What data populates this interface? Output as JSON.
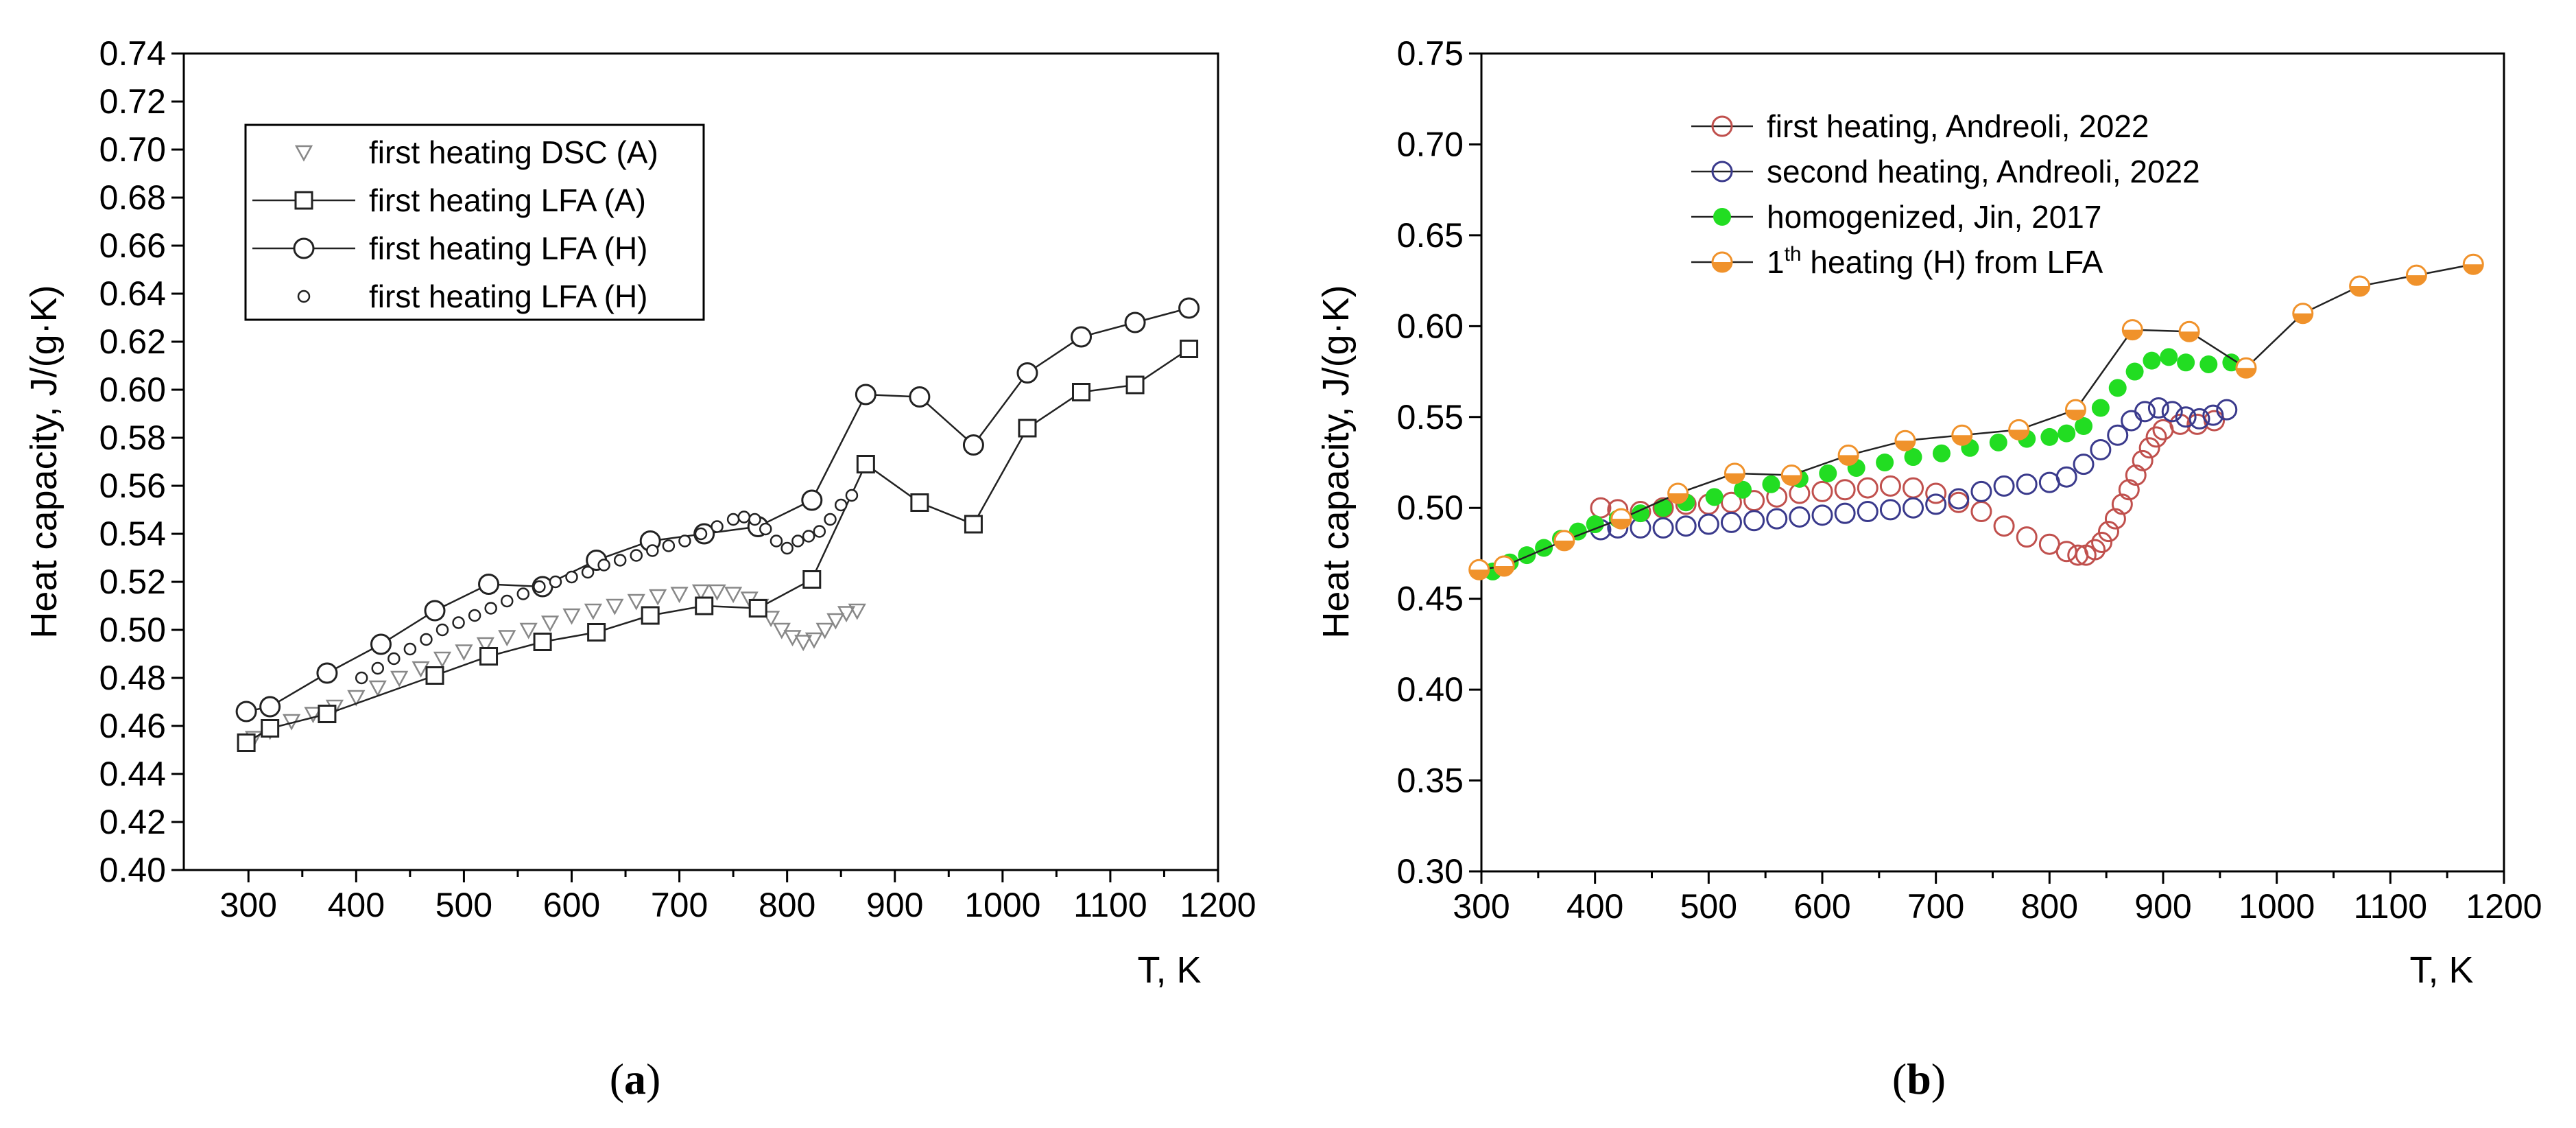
{
  "chart_data": [
    {
      "id": "a",
      "type": "line",
      "caption_open": "(",
      "caption_letter": "a",
      "caption_close": ")",
      "xlabel": "T, K",
      "ylabel": "Heat capacity, J/(g·K)",
      "xlim": [
        240,
        1200
      ],
      "ylim": [
        0.4,
        0.74
      ],
      "xticks": [
        300,
        400,
        500,
        600,
        700,
        800,
        900,
        1000,
        1100,
        1200
      ],
      "xtick_labels": [
        "300",
        "400",
        "500",
        "600",
        "700",
        "800",
        "900",
        "1000",
        "1100",
        "1200"
      ],
      "yticks": [
        0.4,
        0.42,
        0.44,
        0.46,
        0.48,
        0.5,
        0.52,
        0.54,
        0.56,
        0.58,
        0.6,
        0.62,
        0.64,
        0.66,
        0.68,
        0.7,
        0.72,
        0.74
      ],
      "ytick_labels": [
        "0.40",
        "0.42",
        "0.44",
        "0.46",
        "0.48",
        "0.50",
        "0.52",
        "0.54",
        "0.56",
        "0.58",
        "0.60",
        "0.62",
        "0.64",
        "0.66",
        "0.68",
        "0.70",
        "0.72",
        "0.74"
      ],
      "legend_position": "top-left",
      "series": [
        {
          "name": "first heating DSC (A)",
          "marker": "triangle-down",
          "line": false,
          "color": "#888888",
          "x": [
            305,
            320,
            340,
            360,
            380,
            400,
            420,
            440,
            460,
            480,
            500,
            520,
            540,
            560,
            580,
            600,
            620,
            640,
            660,
            680,
            700,
            720,
            735,
            750,
            765,
            775,
            785,
            795,
            805,
            815,
            825,
            835,
            845,
            855,
            865
          ],
          "y": [
            0.455,
            0.458,
            0.462,
            0.465,
            0.468,
            0.472,
            0.476,
            0.48,
            0.484,
            0.488,
            0.491,
            0.494,
            0.497,
            0.5,
            0.503,
            0.506,
            0.508,
            0.51,
            0.512,
            0.514,
            0.515,
            0.516,
            0.516,
            0.515,
            0.513,
            0.51,
            0.505,
            0.5,
            0.497,
            0.495,
            0.496,
            0.5,
            0.504,
            0.507,
            0.508
          ]
        },
        {
          "name": "first heating LFA (A)",
          "marker": "square",
          "line": true,
          "color": "#333333",
          "x": [
            298,
            320,
            373,
            473,
            523,
            573,
            623,
            673,
            723,
            773,
            823,
            873,
            923,
            973,
            1023,
            1073,
            1123,
            1173
          ],
          "y": [
            0.453,
            0.459,
            0.465,
            0.481,
            0.489,
            0.495,
            0.499,
            0.506,
            0.51,
            0.509,
            0.521,
            0.569,
            0.553,
            0.544,
            0.584,
            0.599,
            0.602,
            0.617
          ]
        },
        {
          "name": "first heating LFA (H)",
          "marker": "circle",
          "line": true,
          "color": "#333333",
          "x": [
            298,
            320,
            373,
            423,
            473,
            523,
            573,
            623,
            673,
            723,
            773,
            823,
            873,
            923,
            973,
            1023,
            1073,
            1123,
            1173
          ],
          "y": [
            0.466,
            0.468,
            0.482,
            0.494,
            0.508,
            0.519,
            0.518,
            0.529,
            0.537,
            0.54,
            0.543,
            0.554,
            0.598,
            0.597,
            0.577,
            0.607,
            0.622,
            0.628,
            0.634
          ]
        },
        {
          "name": "first heating LFA (H)",
          "marker": "small-circle",
          "line": false,
          "color": "#333333",
          "x": [
            405,
            420,
            435,
            450,
            465,
            480,
            495,
            510,
            525,
            540,
            555,
            570,
            585,
            600,
            615,
            630,
            645,
            660,
            675,
            690,
            705,
            720,
            735,
            750,
            760,
            770,
            780,
            790,
            800,
            810,
            820,
            830,
            840,
            850,
            860
          ],
          "y": [
            0.48,
            0.484,
            0.488,
            0.492,
            0.496,
            0.5,
            0.503,
            0.506,
            0.509,
            0.512,
            0.515,
            0.518,
            0.52,
            0.522,
            0.524,
            0.527,
            0.529,
            0.531,
            0.533,
            0.535,
            0.537,
            0.54,
            0.543,
            0.546,
            0.547,
            0.546,
            0.542,
            0.537,
            0.534,
            0.537,
            0.539,
            0.541,
            0.546,
            0.552,
            0.556
          ]
        }
      ]
    },
    {
      "id": "b",
      "type": "scatter",
      "caption_open": "(",
      "caption_letter": "b",
      "caption_close": ")",
      "xlabel": "T, K",
      "ylabel": "Heat capacity, J/(g·K)",
      "xlim": [
        300,
        1200
      ],
      "ylim": [
        0.3,
        0.75
      ],
      "xticks": [
        300,
        400,
        500,
        600,
        700,
        800,
        900,
        1000,
        1100,
        1200
      ],
      "xtick_labels": [
        "300",
        "400",
        "500",
        "600",
        "700",
        "800",
        "900",
        "1000",
        "1100",
        "1200"
      ],
      "yticks": [
        0.3,
        0.35,
        0.4,
        0.45,
        0.5,
        0.55,
        0.6,
        0.65,
        0.7,
        0.75
      ],
      "ytick_labels": [
        "0.30",
        "0.35",
        "0.40",
        "0.45",
        "0.50",
        "0.55",
        "0.60",
        "0.65",
        "0.70",
        "0.75"
      ],
      "legend_position": "top-left",
      "series": [
        {
          "name": "first heating, Andreoli, 2022",
          "marker": "open-circle",
          "line": false,
          "color": "#c0504d",
          "x": [
            405,
            420,
            440,
            460,
            480,
            500,
            520,
            540,
            560,
            580,
            600,
            620,
            640,
            660,
            680,
            700,
            720,
            740,
            760,
            780,
            800,
            815,
            825,
            832,
            840,
            846,
            852,
            858,
            864,
            870,
            876,
            882,
            888,
            894,
            900,
            915,
            930,
            945
          ],
          "y": [
            0.5,
            0.499,
            0.498,
            0.5,
            0.502,
            0.502,
            0.503,
            0.504,
            0.506,
            0.508,
            0.509,
            0.51,
            0.511,
            0.512,
            0.511,
            0.508,
            0.503,
            0.498,
            0.49,
            0.484,
            0.48,
            0.476,
            0.474,
            0.474,
            0.477,
            0.481,
            0.487,
            0.494,
            0.502,
            0.51,
            0.518,
            0.526,
            0.533,
            0.539,
            0.543,
            0.546,
            0.546,
            0.548
          ]
        },
        {
          "name": "second heating, Andreoli, 2022",
          "marker": "open-circle",
          "line": false,
          "color": "#3a3a8c",
          "x": [
            405,
            420,
            440,
            460,
            480,
            500,
            520,
            540,
            560,
            580,
            600,
            620,
            640,
            660,
            680,
            700,
            720,
            740,
            760,
            780,
            800,
            815,
            830,
            845,
            860,
            872,
            884,
            896,
            908,
            920,
            932,
            944,
            956
          ],
          "y": [
            0.488,
            0.489,
            0.489,
            0.489,
            0.49,
            0.491,
            0.492,
            0.493,
            0.494,
            0.495,
            0.496,
            0.497,
            0.498,
            0.499,
            0.5,
            0.502,
            0.505,
            0.509,
            0.512,
            0.513,
            0.514,
            0.517,
            0.524,
            0.532,
            0.54,
            0.548,
            0.553,
            0.555,
            0.553,
            0.55,
            0.549,
            0.551,
            0.554
          ]
        },
        {
          "name": "homogenized, Jin, 2017",
          "marker": "filled-circle",
          "line": false,
          "color": "#22dd22",
          "x": [
            310,
            325,
            340,
            355,
            370,
            385,
            400,
            420,
            440,
            460,
            480,
            505,
            530,
            555,
            580,
            605,
            630,
            655,
            680,
            705,
            730,
            755,
            780,
            800,
            815,
            830,
            845,
            860,
            875,
            890,
            905,
            920,
            940,
            960
          ],
          "y": [
            0.465,
            0.47,
            0.474,
            0.478,
            0.483,
            0.487,
            0.491,
            0.494,
            0.497,
            0.5,
            0.503,
            0.506,
            0.51,
            0.513,
            0.516,
            0.519,
            0.522,
            0.525,
            0.528,
            0.53,
            0.533,
            0.536,
            0.538,
            0.539,
            0.541,
            0.545,
            0.555,
            0.566,
            0.575,
            0.581,
            0.583,
            0.58,
            0.579,
            0.58
          ]
        },
        {
          "name": "1th heating (H) from LFA",
          "name_prefix": "1",
          "name_sup": "th",
          "name_suffix": " heating (H) from LFA",
          "marker": "half-circle",
          "line": true,
          "color": "#f0922b",
          "x": [
            298,
            320,
            373,
            423,
            473,
            523,
            573,
            623,
            673,
            723,
            773,
            823,
            873,
            923,
            973,
            1023,
            1073,
            1123,
            1173
          ],
          "y": [
            0.466,
            0.468,
            0.482,
            0.494,
            0.508,
            0.519,
            0.518,
            0.529,
            0.537,
            0.54,
            0.543,
            0.554,
            0.598,
            0.597,
            0.577,
            0.607,
            0.622,
            0.628,
            0.634
          ]
        }
      ]
    }
  ]
}
